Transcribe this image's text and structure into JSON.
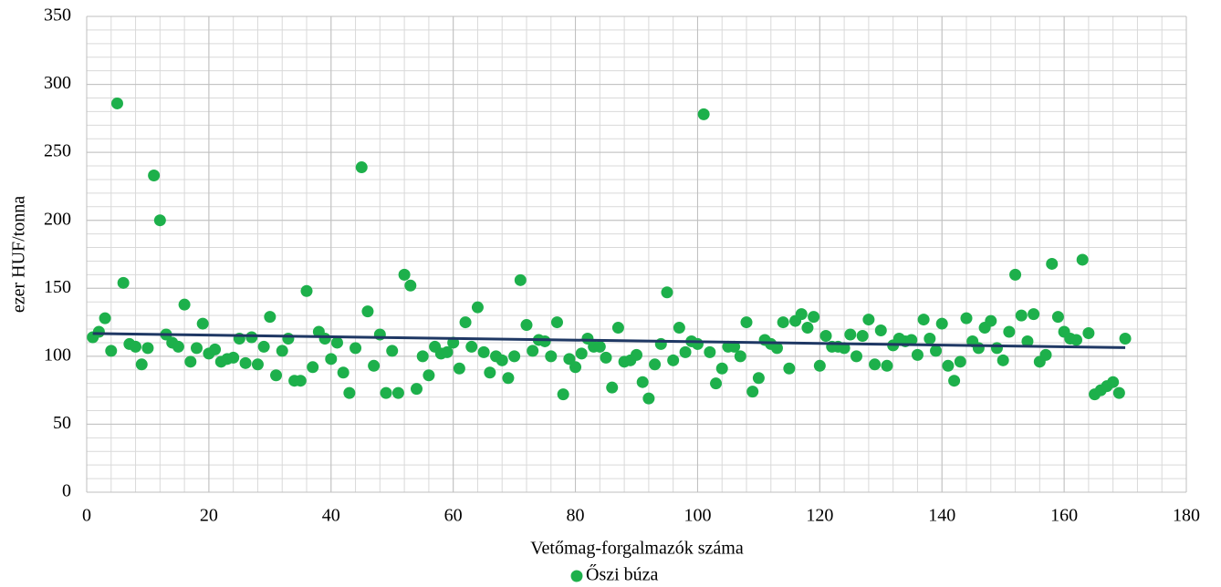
{
  "chart_data": {
    "type": "scatter",
    "x_label": "Vetőmag-forgalmazók száma",
    "y_label": "ezer HUF/tonna",
    "xlim": [
      0,
      180
    ],
    "xticks": [
      0,
      20,
      40,
      60,
      80,
      100,
      120,
      140,
      160,
      180
    ],
    "ylim": [
      0,
      350
    ],
    "yticks": [
      0,
      50,
      100,
      150,
      200,
      250,
      300,
      350
    ],
    "grid": true,
    "minor_grid": {
      "x": 4,
      "y": 10
    },
    "legend": "bottom",
    "trendline": {
      "type": "linear",
      "color": "#1f3864"
    },
    "series": [
      {
        "name": "Őszi búza",
        "color": "#1db04b",
        "x": [
          1,
          2,
          3,
          4,
          5,
          6,
          7,
          8,
          9,
          10,
          11,
          12,
          13,
          14,
          15,
          16,
          17,
          18,
          19,
          20,
          21,
          22,
          23,
          24,
          25,
          26,
          27,
          28,
          29,
          30,
          31,
          32,
          33,
          34,
          35,
          36,
          37,
          38,
          39,
          40,
          41,
          42,
          43,
          44,
          45,
          46,
          47,
          48,
          49,
          50,
          51,
          52,
          53,
          54,
          55,
          56,
          57,
          58,
          59,
          60,
          61,
          62,
          63,
          64,
          65,
          66,
          67,
          68,
          69,
          70,
          71,
          72,
          73,
          74,
          75,
          76,
          77,
          78,
          79,
          80,
          81,
          82,
          83,
          84,
          85,
          86,
          87,
          88,
          89,
          90,
          91,
          92,
          93,
          94,
          95,
          96,
          97,
          98,
          99,
          100,
          101,
          102,
          103,
          104,
          105,
          106,
          107,
          108,
          109,
          110,
          111,
          112,
          113,
          114,
          115,
          116,
          117,
          118,
          119,
          120,
          121,
          122,
          123,
          124,
          125,
          126,
          127,
          128,
          129,
          130,
          131,
          132,
          133,
          134,
          135,
          136,
          137,
          138,
          139,
          140,
          141,
          142,
          143,
          144,
          145,
          146,
          147,
          148,
          149,
          150,
          151,
          152,
          153,
          154,
          155,
          156,
          157,
          158,
          159,
          160,
          161,
          162,
          163,
          164,
          165,
          166,
          167,
          168,
          169,
          170
        ],
        "values": [
          114,
          118,
          128,
          104,
          286,
          154,
          109,
          107,
          94,
          106,
          233,
          200,
          116,
          110,
          107,
          138,
          96,
          106,
          124,
          102,
          105,
          96,
          98,
          99,
          113,
          95,
          114,
          94,
          107,
          129,
          86,
          104,
          113,
          82,
          82,
          148,
          92,
          118,
          113,
          98,
          110,
          88,
          73,
          106,
          239,
          133,
          93,
          116,
          73,
          104,
          73,
          160,
          152,
          76,
          100,
          86,
          107,
          102,
          103,
          110,
          91,
          125,
          107,
          136,
          103,
          88,
          100,
          97,
          84,
          100,
          156,
          123,
          104,
          112,
          111,
          100,
          125,
          72,
          98,
          92,
          102,
          113,
          107,
          107,
          99,
          77,
          121,
          96,
          97,
          101,
          81,
          69,
          94,
          109,
          147,
          97,
          121,
          103,
          111,
          109,
          278,
          103,
          80,
          91,
          107,
          107,
          100,
          125,
          74,
          84,
          112,
          109,
          106,
          125,
          91,
          126,
          131,
          121,
          129,
          93,
          115,
          107,
          107,
          106,
          116,
          100,
          115,
          127,
          94,
          119,
          93,
          108,
          113,
          111,
          112,
          101,
          127,
          113,
          104,
          124,
          93,
          82,
          96,
          128,
          111,
          106,
          121,
          126,
          106,
          97,
          118,
          160,
          130,
          111,
          131,
          96,
          101,
          168,
          129,
          118,
          113,
          112,
          171,
          117,
          72,
          75,
          78,
          81,
          73,
          113
        ]
      }
    ]
  }
}
